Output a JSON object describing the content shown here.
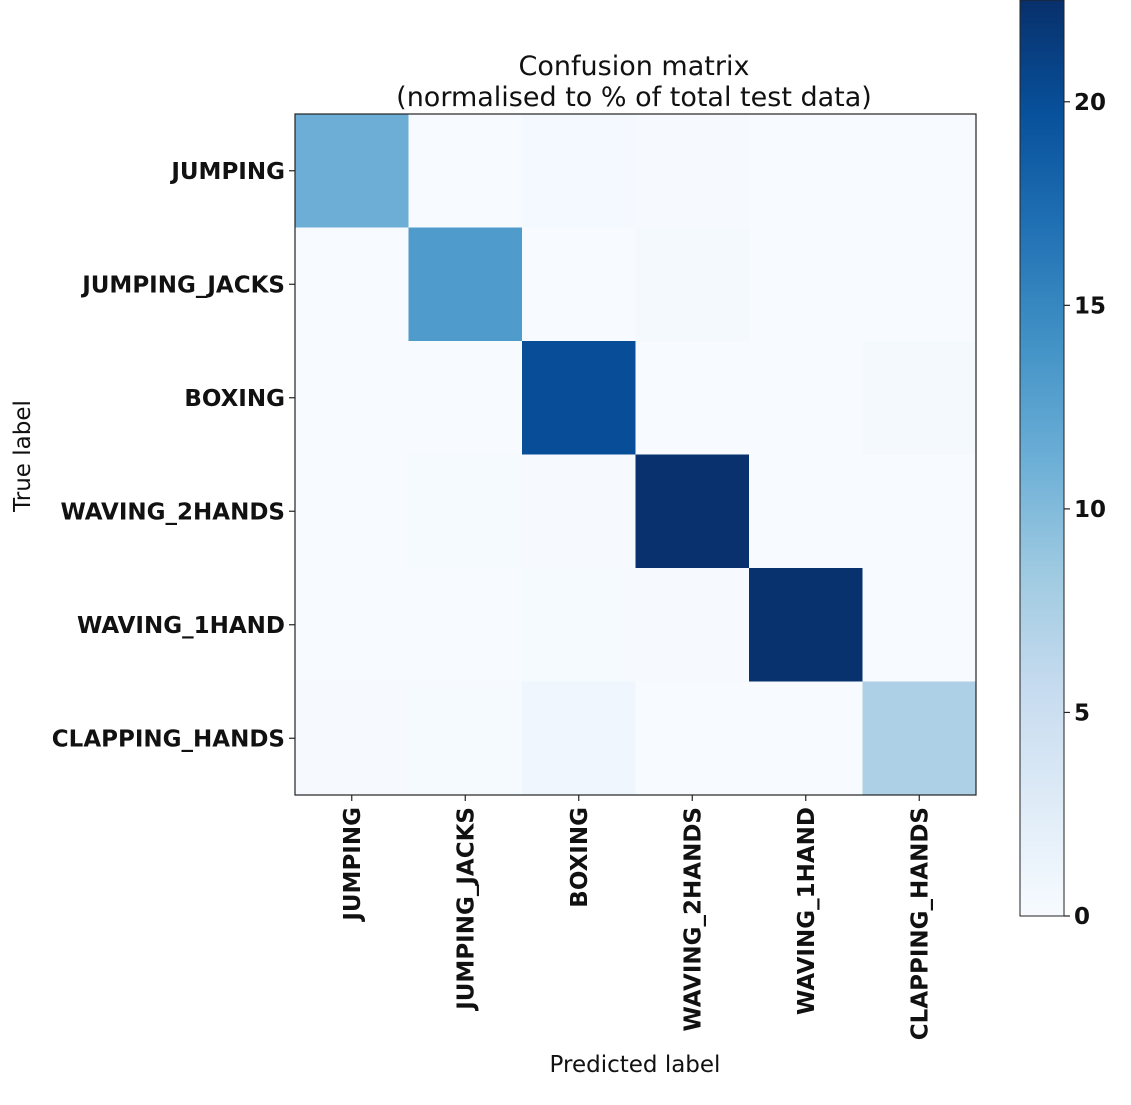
{
  "chart_data": {
    "type": "heatmap",
    "title_line1": "Confusion matrix",
    "title_line2": "(normalised to % of total test data)",
    "xlabel": "Predicted label",
    "ylabel": "True label",
    "x_categories": [
      "JUMPING",
      "JUMPING_JACKS",
      "BOXING",
      "WAVING_2HANDS",
      "WAVING_1HAND",
      "CLAPPING_HANDS"
    ],
    "y_categories": [
      "JUMPING",
      "JUMPING_JACKS",
      "BOXING",
      "WAVING_2HANDS",
      "WAVING_1HAND",
      "CLAPPING_HANDS"
    ],
    "values": [
      [
        11.2,
        0.0,
        0.4,
        0.1,
        0.0,
        0.0
      ],
      [
        0.0,
        13.2,
        0.0,
        0.3,
        0.0,
        0.0
      ],
      [
        0.0,
        0.0,
        20.0,
        0.0,
        0.0,
        0.3
      ],
      [
        0.0,
        0.2,
        0.1,
        22.4,
        0.0,
        0.0
      ],
      [
        0.0,
        0.0,
        0.2,
        0.1,
        22.3,
        0.0
      ],
      [
        0.1,
        0.2,
        0.8,
        0.0,
        0.0,
        7.4
      ]
    ],
    "colormap": "Blues",
    "colorbar": {
      "vmin": 0,
      "vmax": 22.5,
      "ticks": [
        0,
        5,
        10,
        15,
        20
      ]
    },
    "grid": false
  }
}
